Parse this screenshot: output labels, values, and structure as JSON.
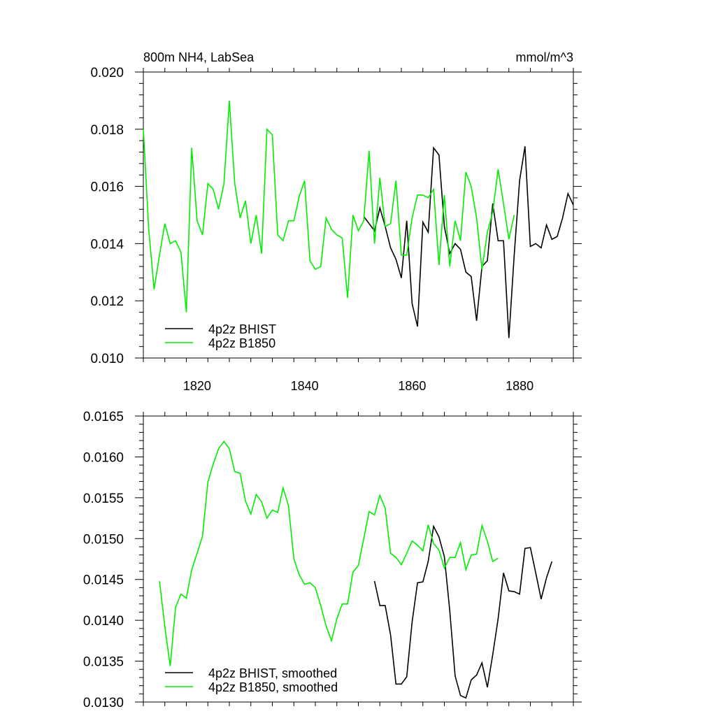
{
  "colors": {
    "bhist": "#000000",
    "b1850": "#00ee00",
    "axis": "#000000"
  },
  "chart_data": [
    {
      "type": "line",
      "title_left": "800m NH4, LabSea",
      "title_right": "mmol/m^3",
      "xlim": [
        1810,
        1890
      ],
      "ylim": [
        0.01,
        0.02
      ],
      "xticks": [
        1820,
        1840,
        1860,
        1880
      ],
      "xtick_labels": [
        "1820",
        "1840",
        "1860",
        "1880"
      ],
      "yticks": [
        0.01,
        0.012,
        0.014,
        0.016,
        0.018,
        0.02
      ],
      "ytick_labels": [
        "0.010",
        "0.012",
        "0.014",
        "0.016",
        "0.018",
        "0.020"
      ],
      "legend_position": "bottom-left",
      "series": [
        {
          "name": "4p2z BHIST",
          "color": "#000000",
          "x": [
            1851,
            1852,
            1853,
            1854,
            1855,
            1856,
            1857,
            1858,
            1859,
            1860,
            1861,
            1862,
            1863,
            1864,
            1865,
            1866,
            1867,
            1868,
            1869,
            1870,
            1871,
            1872,
            1873,
            1874,
            1875,
            1876,
            1877,
            1878,
            1879,
            1880,
            1881,
            1882,
            1883,
            1884,
            1885,
            1886,
            1887,
            1888,
            1889,
            1890
          ],
          "values": [
            0.01495,
            0.0147,
            0.01445,
            0.01525,
            0.0146,
            0.01385,
            0.01345,
            0.0128,
            0.0148,
            0.0119,
            0.0111,
            0.01475,
            0.0144,
            0.01735,
            0.0171,
            0.0146,
            0.01365,
            0.014,
            0.0138,
            0.013,
            0.01285,
            0.0113,
            0.0132,
            0.0134,
            0.0154,
            0.0141,
            0.0141,
            0.0107,
            0.0136,
            0.0162,
            0.0174,
            0.0139,
            0.014,
            0.01385,
            0.01465,
            0.01415,
            0.01425,
            0.0149,
            0.01575,
            0.01535
          ]
        },
        {
          "name": "4p2z B1850",
          "color": "#00ee00",
          "x": [
            1810,
            1811,
            1812,
            1813,
            1814,
            1815,
            1816,
            1817,
            1818,
            1819,
            1820,
            1821,
            1822,
            1823,
            1824,
            1825,
            1826,
            1827,
            1828,
            1829,
            1830,
            1831,
            1832,
            1833,
            1834,
            1835,
            1836,
            1837,
            1838,
            1839,
            1840,
            1841,
            1842,
            1843,
            1844,
            1845,
            1846,
            1847,
            1848,
            1849,
            1850,
            1851,
            1852,
            1853,
            1854,
            1855,
            1856,
            1857,
            1858,
            1859,
            1860,
            1861,
            1862,
            1863,
            1864,
            1865,
            1866,
            1867,
            1868,
            1869,
            1870,
            1871,
            1872,
            1873,
            1874,
            1875,
            1876,
            1877,
            1878,
            1879,
            1880
          ],
          "values": [
            0.018,
            0.0145,
            0.0124,
            0.0136,
            0.0147,
            0.014,
            0.0141,
            0.0137,
            0.0116,
            0.01735,
            0.0148,
            0.0143,
            0.0161,
            0.0159,
            0.0152,
            0.0161,
            0.019,
            0.0161,
            0.0149,
            0.0155,
            0.014,
            0.015,
            0.01365,
            0.018,
            0.0178,
            0.0143,
            0.0141,
            0.0148,
            0.0148,
            0.01565,
            0.0162,
            0.0134,
            0.0131,
            0.0132,
            0.0149,
            0.0145,
            0.0143,
            0.0142,
            0.0121,
            0.015,
            0.01445,
            0.0148,
            0.01725,
            0.014,
            0.0163,
            0.0146,
            0.0147,
            0.0162,
            0.0136,
            0.0136,
            0.0149,
            0.0157,
            0.0157,
            0.0156,
            0.0159,
            0.01325,
            0.0157,
            0.0132,
            0.0148,
            0.0141,
            0.0165,
            0.016,
            0.0149,
            0.0131,
            0.0144,
            0.0151,
            0.0166,
            0.0154,
            0.01415,
            0.015,
            null
          ]
        }
      ]
    },
    {
      "type": "line",
      "xlim": [
        1810,
        1890
      ],
      "ylim": [
        0.013,
        0.0165
      ],
      "xticks": [
        1820,
        1840,
        1860,
        1880
      ],
      "yticks": [
        0.013,
        0.0135,
        0.014,
        0.0145,
        0.015,
        0.0155,
        0.016,
        0.0165
      ],
      "ytick_labels": [
        "0.0130",
        "0.0135",
        "0.0140",
        "0.0145",
        "0.0150",
        "0.0155",
        "0.0160",
        "0.0165"
      ],
      "legend_position": "bottom-left",
      "series": [
        {
          "name": "4p2z BHIST, smoothed",
          "color": "#000000",
          "x": [
            1853,
            1854,
            1855,
            1856,
            1857,
            1858,
            1859,
            1860,
            1861,
            1862,
            1863,
            1864,
            1865,
            1866,
            1867,
            1868,
            1869,
            1870,
            1871,
            1872,
            1873,
            1874,
            1875,
            1876,
            1877,
            1878,
            1879,
            1880,
            1881,
            1882,
            1883,
            1884,
            1885,
            1886,
            1887
          ],
          "values": [
            0.01448,
            0.01418,
            0.01418,
            0.01382,
            0.01322,
            0.01322,
            0.01331,
            0.01398,
            0.01446,
            0.01447,
            0.01472,
            0.01515,
            0.01502,
            0.01478,
            0.01412,
            0.01332,
            0.01308,
            0.01305,
            0.01327,
            0.01333,
            0.01348,
            0.01318,
            0.01358,
            0.01402,
            0.01458,
            0.01436,
            0.01435,
            0.01432,
            0.01488,
            0.01489,
            0.01458,
            0.01426,
            0.01452,
            0.01472,
            null
          ]
        },
        {
          "name": "4p2z B1850, smoothed",
          "color": "#00ee00",
          "x": [
            1813,
            1814,
            1815,
            1816,
            1817,
            1818,
            1819,
            1820,
            1821,
            1822,
            1823,
            1824,
            1825,
            1826,
            1827,
            1828,
            1829,
            1830,
            1831,
            1832,
            1833,
            1834,
            1835,
            1836,
            1837,
            1838,
            1839,
            1840,
            1841,
            1842,
            1843,
            1844,
            1845,
            1846,
            1847,
            1848,
            1849,
            1850,
            1851,
            1852,
            1853,
            1854,
            1855,
            1856,
            1857,
            1858,
            1859,
            1860,
            1861,
            1862,
            1863,
            1864,
            1865,
            1866,
            1867,
            1868,
            1869,
            1870,
            1871,
            1872,
            1873,
            1874,
            1875,
            1876,
            1877
          ],
          "values": [
            0.01448,
            0.01392,
            0.01344,
            0.01416,
            0.01432,
            0.01427,
            0.01462,
            0.01482,
            0.01503,
            0.01569,
            0.01591,
            0.0161,
            0.01619,
            0.0161,
            0.01582,
            0.0158,
            0.01546,
            0.0153,
            0.01554,
            0.01545,
            0.01525,
            0.01535,
            0.01532,
            0.01562,
            0.0154,
            0.01475,
            0.01456,
            0.01444,
            0.01446,
            0.0144,
            0.01418,
            0.01393,
            0.01375,
            0.01402,
            0.0142,
            0.0142,
            0.01459,
            0.01467,
            0.015,
            0.01533,
            0.01529,
            0.01553,
            0.01537,
            0.01482,
            0.01477,
            0.01468,
            0.01482,
            0.01497,
            0.01492,
            0.01485,
            0.01517,
            0.01494,
            0.01486,
            0.01464,
            0.01477,
            0.01477,
            0.01495,
            0.01462,
            0.0148,
            0.01481,
            0.01516,
            0.01497,
            0.01472,
            0.01476,
            null
          ]
        }
      ]
    }
  ]
}
